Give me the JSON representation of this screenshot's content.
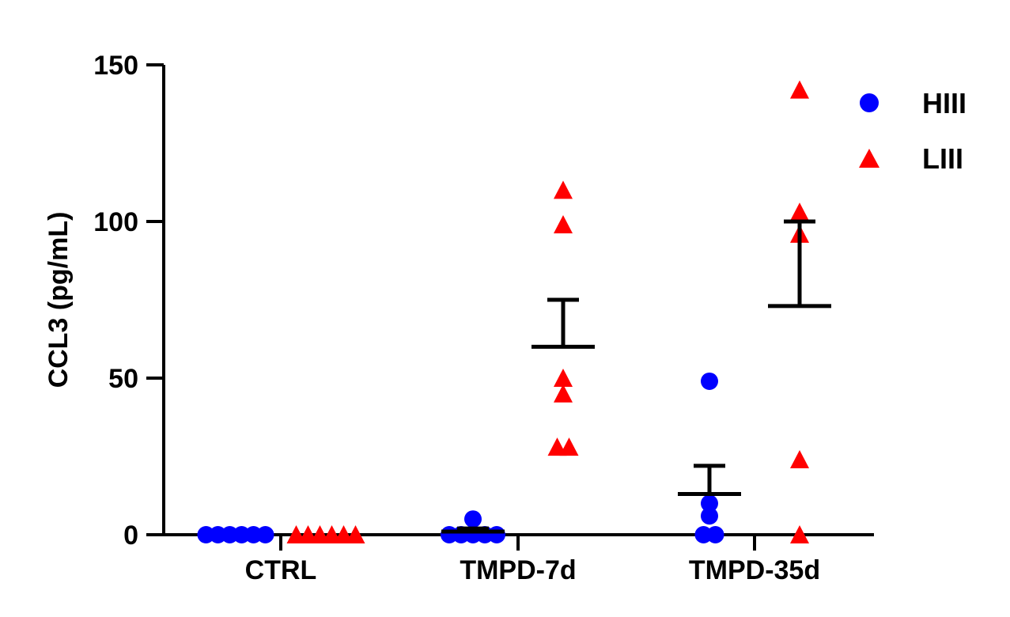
{
  "colors": {
    "HIII": "#0000ff",
    "LIII": "#ff0000",
    "axis": "#000000"
  },
  "chart_data": {
    "type": "scatter",
    "title": "",
    "xlabel": "",
    "ylabel": "CCL3 (pg/mL)",
    "ylim": [
      0,
      150
    ],
    "yticks": [
      0,
      50,
      100,
      150
    ],
    "categories": [
      "CTRL",
      "TMPD-7d",
      "TMPD-35d"
    ],
    "legend_position": "top-right",
    "series": [
      {
        "name": "HIII",
        "marker": "circle",
        "points": [
          [
            0,
            0,
            0,
            0,
            0,
            0
          ],
          [
            0,
            0,
            0,
            0,
            5,
            0
          ],
          [
            49,
            10,
            6,
            0,
            0
          ]
        ],
        "mean": [
          0,
          1,
          13
        ],
        "sem_upper": [
          0,
          2,
          22
        ]
      },
      {
        "name": "LIII",
        "marker": "triangle",
        "points": [
          [
            0,
            0,
            0,
            0,
            0,
            0
          ],
          [
            110,
            99,
            50,
            45,
            28,
            28
          ],
          [
            142,
            103,
            96,
            24,
            0
          ]
        ],
        "mean": [
          0,
          60,
          73
        ],
        "sem_upper": [
          0,
          75,
          100
        ]
      }
    ]
  }
}
